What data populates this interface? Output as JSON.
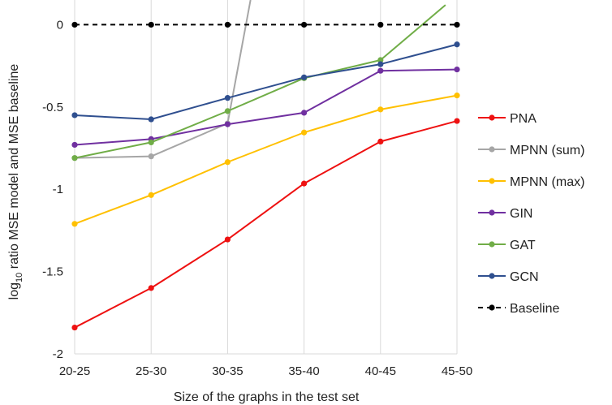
{
  "chart_data": {
    "type": "line",
    "title": "",
    "xlabel": "Size of the graphs in the test set",
    "ylabel_prefix": "log",
    "ylabel_subscript": "10",
    "ylabel_rest": " ratio MSE model and MSE baseline",
    "categories": [
      "20-25",
      "25-30",
      "30-35",
      "35-40",
      "40-45",
      "45-50"
    ],
    "ylim": [
      -2,
      0.15
    ],
    "yticks": [
      0,
      -0.5,
      -1,
      -1.5,
      -2
    ],
    "ytick_labels": [
      "0",
      "-0.5",
      "-1",
      "-1.5",
      "-2"
    ],
    "grid": "vertical",
    "legend_position": "right",
    "series": [
      {
        "name": "PNA",
        "color": "#ee1111",
        "dashed": false,
        "points": [
          [
            0,
            -1.84
          ],
          [
            1,
            -1.6
          ],
          [
            2,
            -1.305
          ],
          [
            3,
            -0.965
          ],
          [
            4,
            -0.71
          ],
          [
            5,
            -0.585
          ]
        ]
      },
      {
        "name": "MPNN (sum)",
        "color": "#a6a6a6",
        "dashed": false,
        "points": [
          [
            0,
            -0.81
          ],
          [
            1,
            -0.8
          ],
          [
            2,
            -0.6
          ],
          [
            2.3,
            0.15
          ]
        ]
      },
      {
        "name": "MPNN (max)",
        "color": "#ffc000",
        "dashed": false,
        "points": [
          [
            0,
            -1.21
          ],
          [
            1,
            -1.035
          ],
          [
            2,
            -0.835
          ],
          [
            3,
            -0.655
          ],
          [
            4,
            -0.515
          ],
          [
            5,
            -0.43
          ]
        ]
      },
      {
        "name": "GIN",
        "color": "#7030a0",
        "dashed": false,
        "points": [
          [
            0,
            -0.73
          ],
          [
            1,
            -0.695
          ],
          [
            2,
            -0.605
          ],
          [
            3,
            -0.535
          ],
          [
            4,
            -0.28
          ],
          [
            5,
            -0.272
          ]
        ]
      },
      {
        "name": "GAT",
        "color": "#70ad47",
        "dashed": false,
        "points": [
          [
            0,
            -0.81
          ],
          [
            1,
            -0.715
          ],
          [
            2,
            -0.525
          ],
          [
            3,
            -0.325
          ],
          [
            4,
            -0.215
          ],
          [
            4.85,
            0.12
          ]
        ]
      },
      {
        "name": "GCN",
        "color": "#2f4f8f",
        "dashed": false,
        "points": [
          [
            0,
            -0.55
          ],
          [
            1,
            -0.575
          ],
          [
            2,
            -0.445
          ],
          [
            3,
            -0.32
          ],
          [
            4,
            -0.24
          ],
          [
            5,
            -0.12
          ]
        ]
      },
      {
        "name": "Baseline",
        "color": "#000000",
        "dashed": true,
        "points": [
          [
            0,
            0
          ],
          [
            1,
            0
          ],
          [
            2,
            0
          ],
          [
            3,
            0
          ],
          [
            4,
            0
          ],
          [
            5,
            0
          ]
        ]
      }
    ]
  }
}
